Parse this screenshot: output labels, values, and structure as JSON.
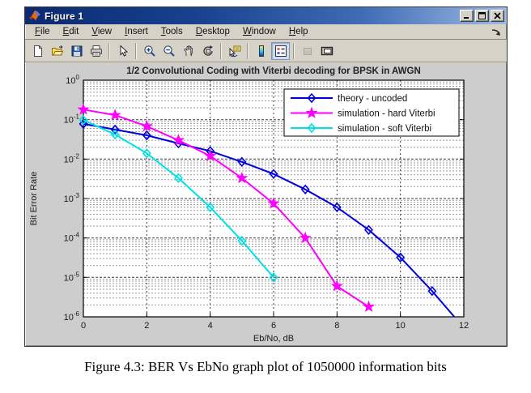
{
  "window": {
    "title": "Figure 1",
    "controls": [
      "minimize",
      "maximize",
      "close"
    ]
  },
  "menubar": {
    "items": [
      "File",
      "Edit",
      "View",
      "Insert",
      "Tools",
      "Desktop",
      "Window",
      "Help"
    ]
  },
  "toolbar": {
    "icons": [
      "new-figure",
      "open-file",
      "save-figure",
      "print-figure",
      "edit-plot-arrow",
      "zoom-in",
      "zoom-out",
      "pan-hand",
      "rotate-3d",
      "data-cursor",
      "insert-colorbar",
      "insert-legend",
      "hide-plot-tools",
      "show-plot-tools"
    ],
    "active": "insert-legend",
    "disabled": [
      "hide-plot-tools"
    ]
  },
  "caption": "Figure 4.3: BER Vs EbNo graph plot of 1050000 information bits",
  "chart_data": {
    "type": "line",
    "title": "1/2 Convolutional Coding with Viterbi decoding for BPSK in AWGN",
    "xlabel": "Eb/No, dB",
    "ylabel": "Bit Error Rate",
    "xlim": [
      0,
      12
    ],
    "x_ticks": [
      0,
      2,
      4,
      6,
      8,
      10,
      12
    ],
    "y_scale": "log",
    "ylim": [
      1e-06,
      1
    ],
    "y_tick_exponents": [
      0,
      -1,
      -2,
      -3,
      -4,
      -5,
      -6
    ],
    "grid": true,
    "legend_position": "top-right",
    "series": [
      {
        "name": "theory - uncoded",
        "color": "#0000dd",
        "marker": "diamond",
        "x": [
          0,
          1,
          2,
          3,
          4,
          5,
          6,
          7,
          8,
          9,
          10,
          11
        ],
        "y": [
          0.078,
          0.056,
          0.04,
          0.025,
          0.016,
          0.0085,
          0.0042,
          0.0017,
          0.0006,
          0.00016,
          3.2e-05,
          4.5e-06
        ],
        "line_extension": {
          "x": 11.7,
          "y": 1e-06
        }
      },
      {
        "name": "simulation - hard Viterbi",
        "color": "#ff00ff",
        "marker": "star",
        "x": [
          0,
          1,
          2,
          3,
          4,
          5,
          6,
          7,
          8,
          9
        ],
        "y": [
          0.18,
          0.13,
          0.068,
          0.03,
          0.012,
          0.0033,
          0.00075,
          0.0001,
          6e-06,
          1.8e-06
        ]
      },
      {
        "name": "simulation - soft Viterbi",
        "color": "#00e0e6",
        "marker": "diamond",
        "x": [
          0,
          1,
          2,
          3,
          4,
          5,
          6
        ],
        "y": [
          0.098,
          0.042,
          0.014,
          0.0033,
          0.0006,
          8.5e-05,
          1e-05
        ]
      }
    ]
  }
}
